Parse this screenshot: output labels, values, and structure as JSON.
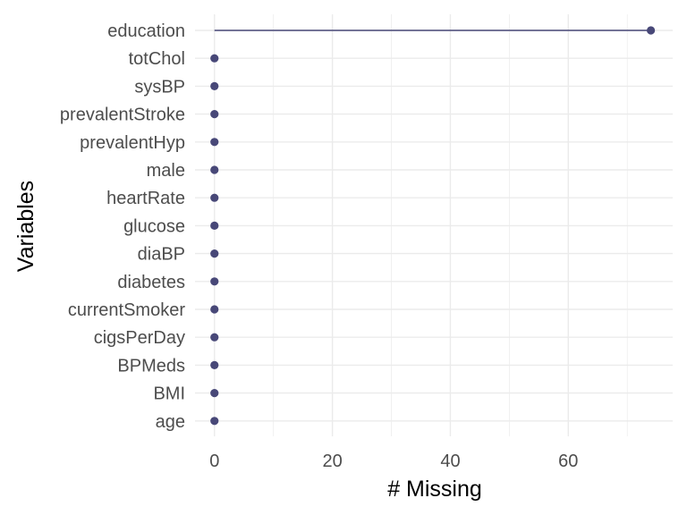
{
  "chart_data": {
    "type": "lollipop",
    "xlabel": "# Missing",
    "ylabel": "Variables",
    "xlim": [
      -3.3,
      77.7
    ],
    "xticks": [
      0,
      20,
      40,
      60
    ],
    "grid": true,
    "colors": {
      "point": "#484878",
      "segment": "#484878"
    },
    "categories": [
      "education",
      "totChol",
      "sysBP",
      "prevalentStroke",
      "prevalentHyp",
      "male",
      "heartRate",
      "glucose",
      "diaBP",
      "diabetes",
      "currentSmoker",
      "cigsPerDay",
      "BPMeds",
      "BMI",
      "age"
    ],
    "values": [
      74,
      0,
      0,
      0,
      0,
      0,
      0,
      0,
      0,
      0,
      0,
      0,
      0,
      0,
      0
    ]
  }
}
